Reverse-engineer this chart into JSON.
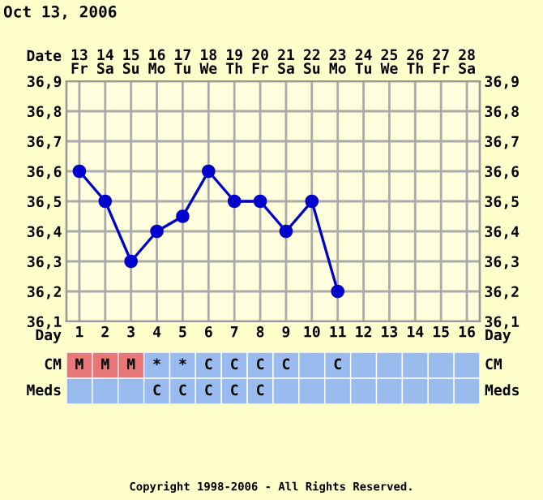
{
  "chart_data": [
    {
      "type": "line",
      "title": "Oct 13, 2006",
      "xlabel": "Day",
      "x2label": "Date",
      "x": [
        1,
        2,
        3,
        4,
        5,
        6,
        7,
        8,
        9,
        10,
        11
      ],
      "series": [
        {
          "color": "#0000cc",
          "values": [
            36.6,
            36.5,
            36.3,
            36.4,
            36.45,
            36.6,
            36.5,
            36.5,
            36.4,
            36.5,
            36.2
          ]
        }
      ],
      "xlim": [
        0.5,
        16.5
      ],
      "xticks": [
        1,
        2,
        3,
        4,
        5,
        6,
        7,
        8,
        9,
        10,
        11,
        12,
        13,
        14,
        15,
        16
      ],
      "x2lim": [
        "2006-10-12T12:00",
        "2006-10-28T12:00"
      ],
      "x2ticks": [
        {
          "value": "2006-10-13",
          "label": "13\nFr"
        },
        {
          "value": "2006-10-14",
          "label": "14\nSa"
        },
        {
          "value": "2006-10-15",
          "label": "15\nSu"
        },
        {
          "value": "2006-10-16",
          "label": "16\nMo"
        },
        {
          "value": "2006-10-17",
          "label": "17\nTu"
        },
        {
          "value": "2006-10-18",
          "label": "18\nWe"
        },
        {
          "value": "2006-10-19",
          "label": "19\nTh"
        },
        {
          "value": "2006-10-20",
          "label": "20\nFr"
        },
        {
          "value": "2006-10-21",
          "label": "21\nSa"
        },
        {
          "value": "2006-10-22",
          "label": "22\nSu"
        },
        {
          "value": "2006-10-23",
          "label": "23\nMo"
        },
        {
          "value": "2006-10-24",
          "label": "24\nTu"
        },
        {
          "value": "2006-10-25",
          "label": "25\nWe"
        },
        {
          "value": "2006-10-26",
          "label": "26\nTh"
        },
        {
          "value": "2006-10-27",
          "label": "27\nFr"
        },
        {
          "value": "2006-10-28",
          "label": "28\nSa"
        }
      ],
      "ylim": [
        36.1,
        36.9
      ],
      "yticks": [
        {
          "value": 36.1,
          "label": "36,1"
        },
        {
          "value": 36.2,
          "label": "36,2"
        },
        {
          "value": 36.3,
          "label": "36,3"
        },
        {
          "value": 36.4,
          "label": "36,4"
        },
        {
          "value": 36.5,
          "label": "36,5"
        },
        {
          "value": 36.6,
          "label": "36,6"
        },
        {
          "value": 36.7,
          "label": "36,7"
        },
        {
          "value": 36.8,
          "label": "36,8"
        },
        {
          "value": 36.9,
          "label": "36,9"
        }
      ],
      "y2lim": [
        36.1,
        36.9
      ],
      "y2ticks": [
        {
          "value": 36.1,
          "label": "36,1"
        },
        {
          "value": 36.2,
          "label": "36,2"
        },
        {
          "value": 36.3,
          "label": "36,3"
        },
        {
          "value": 36.4,
          "label": "36,4"
        },
        {
          "value": 36.5,
          "label": "36,5"
        },
        {
          "value": 36.6,
          "label": "36,6"
        },
        {
          "value": 36.7,
          "label": "36,7"
        },
        {
          "value": 36.8,
          "label": "36,8"
        },
        {
          "value": 36.9,
          "label": "36,9"
        }
      ],
      "grid": true,
      "marker": "circle",
      "line_style": "solid"
    },
    {
      "type": "other",
      "y_categories": [
        "CM",
        "Meds"
      ],
      "y2_categories": [
        "CM",
        "Meds"
      ],
      "cell_labels": [
        [
          "M",
          "M",
          "M",
          "*",
          "*",
          "C",
          "C",
          "C",
          "C",
          null,
          "C",
          null,
          null,
          null,
          null,
          null
        ],
        [
          null,
          null,
          null,
          "C",
          "C",
          "C",
          "C",
          "C",
          null,
          null,
          null,
          null,
          null,
          null,
          null,
          null
        ]
      ],
      "colors": [
        [
          "#e87878",
          "#e87878",
          "#e87878",
          "#99bbee",
          "#99bbee",
          "#99bbee",
          "#99bbee",
          "#99bbee",
          "#99bbee",
          "#99bbee",
          "#99bbee",
          "#99bbee",
          "#99bbee",
          "#99bbee",
          "#99bbee",
          "#99bbee"
        ],
        [
          "#99bbee",
          "#99bbee",
          "#99bbee",
          "#99bbee",
          "#99bbee",
          "#99bbee",
          "#99bbee",
          "#99bbee",
          "#99bbee",
          "#99bbee",
          "#99bbee",
          "#99bbee",
          "#99bbee",
          "#99bbee",
          "#99bbee",
          "#99bbee"
        ]
      ],
      "annotations": [
        "Copyright 1998-2006 - All Rights Reserved."
      ]
    }
  ]
}
